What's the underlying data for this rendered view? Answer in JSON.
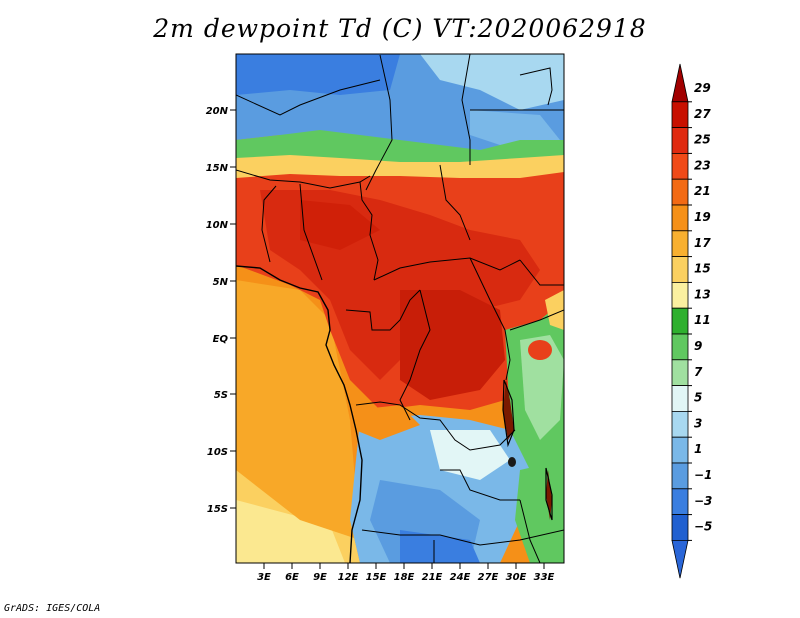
{
  "title": "2m dewpoint Td (C) VT:2020062918",
  "credit": "GrADS: IGES/COLA",
  "map": {
    "lat_labels": [
      "20N",
      "15N",
      "10N",
      "5N",
      "EQ",
      "5S",
      "10S",
      "15S"
    ],
    "lon_labels": [
      "3E",
      "6E",
      "9E",
      "12E",
      "15E",
      "18E",
      "21E",
      "24E",
      "27E",
      "30E",
      "33E"
    ]
  },
  "colorbar": {
    "labels": [
      "29",
      "27",
      "25",
      "23",
      "21",
      "19",
      "17",
      "15",
      "13",
      "11",
      "9",
      "7",
      "5",
      "3",
      "1",
      "−1",
      "−3",
      "−5"
    ],
    "colors": [
      "#a10000",
      "#c81000",
      "#e02a10",
      "#f04a18",
      "#f26a14",
      "#f59018",
      "#f8b030",
      "#fbd060",
      "#fbf0a0",
      "#2eb02e",
      "#60c860",
      "#a0e0a0",
      "#e2f6f6",
      "#a8d8f0",
      "#7ab8e8",
      "#5a9ce0",
      "#3a7ee0",
      "#2060d0",
      "#2a66d8"
    ]
  }
}
